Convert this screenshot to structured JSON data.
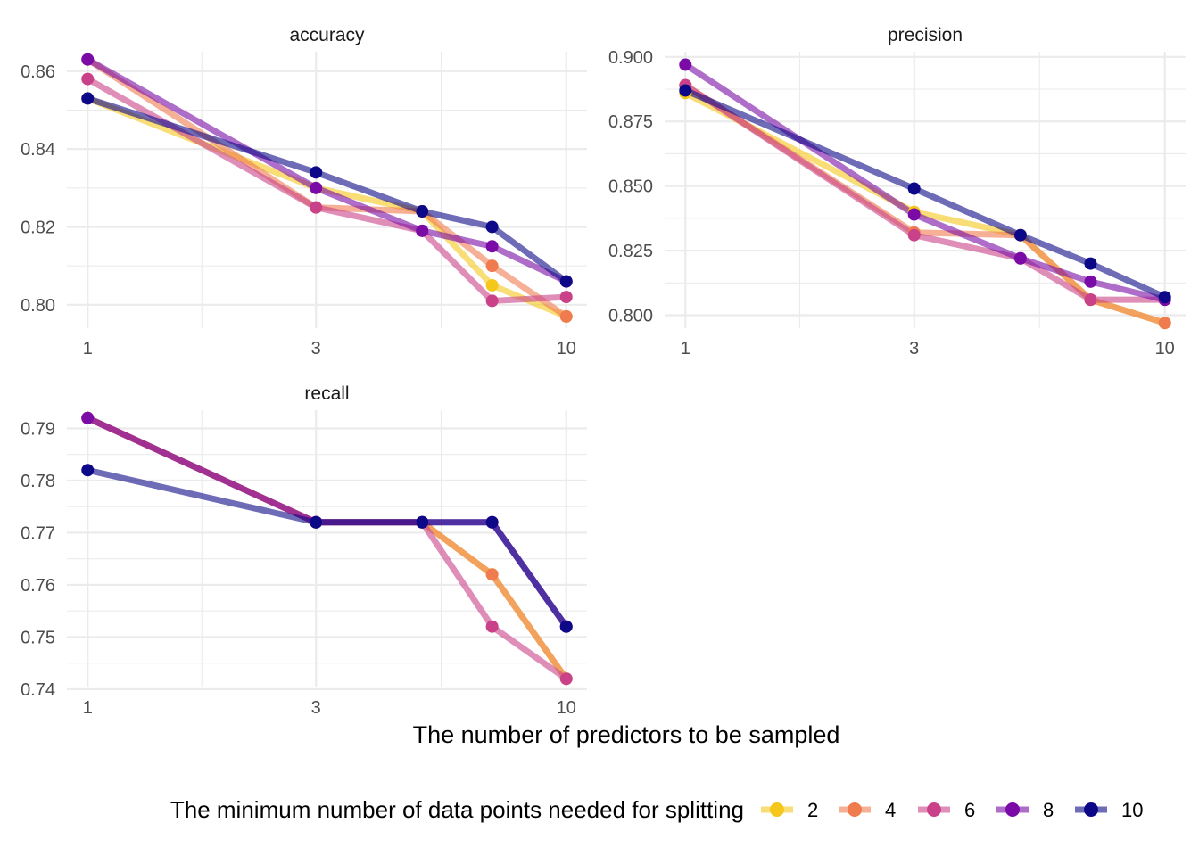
{
  "chart_data": {
    "type": "line",
    "x_scale": "log10",
    "x_ticks": [
      1,
      3,
      10
    ],
    "xlabel": "The number of predictors to be sampled",
    "legend": {
      "title": "The minimum number of data points needed for splitting",
      "position": "bottom",
      "colors": {
        "2": "#f5c71a",
        "4": "#ef7b4f",
        "6": "#c94289",
        "8": "#7a0ba6",
        "10": "#0d0887"
      }
    },
    "grid": true,
    "panels": [
      {
        "title": "accuracy",
        "ylim": [
          0.794,
          0.865
        ],
        "y_ticks": [
          0.8,
          0.82,
          0.84,
          0.86
        ],
        "y_tick_labels": [
          "0.80",
          "0.82",
          "0.84",
          "0.86"
        ],
        "series": [
          {
            "name": "2",
            "x": [
              1,
              3,
              5,
              7,
              10
            ],
            "values": [
              0.853,
              0.83,
              0.824,
              0.805,
              0.797
            ]
          },
          {
            "name": "4",
            "x": [
              1,
              3,
              5,
              7,
              10
            ],
            "values": [
              0.863,
              0.825,
              0.824,
              0.81,
              0.797
            ]
          },
          {
            "name": "6",
            "x": [
              1,
              3,
              5,
              7,
              10
            ],
            "values": [
              0.858,
              0.825,
              0.819,
              0.801,
              0.802
            ]
          },
          {
            "name": "8",
            "x": [
              1,
              3,
              5,
              7,
              10
            ],
            "values": [
              0.863,
              0.83,
              0.819,
              0.815,
              0.806
            ]
          },
          {
            "name": "10",
            "x": [
              1,
              3,
              5,
              7,
              10
            ],
            "values": [
              0.853,
              0.834,
              0.824,
              0.82,
              0.806
            ]
          }
        ]
      },
      {
        "title": "precision",
        "ylim": [
          0.795,
          0.902
        ],
        "y_ticks": [
          0.8,
          0.825,
          0.85,
          0.875,
          0.9
        ],
        "y_tick_labels": [
          "0.800",
          "0.825",
          "0.850",
          "0.875",
          "0.900"
        ],
        "series": [
          {
            "name": "2",
            "x": [
              1,
              3,
              5,
              7,
              10
            ],
            "values": [
              0.886,
              0.84,
              0.831,
              0.806,
              0.797
            ]
          },
          {
            "name": "4",
            "x": [
              1,
              3,
              5,
              7,
              10
            ],
            "values": [
              0.889,
              0.832,
              0.831,
              0.806,
              0.797
            ]
          },
          {
            "name": "6",
            "x": [
              1,
              3,
              5,
              7,
              10
            ],
            "values": [
              0.889,
              0.831,
              0.822,
              0.806,
              0.806
            ]
          },
          {
            "name": "8",
            "x": [
              1,
              3,
              5,
              7,
              10
            ],
            "values": [
              0.897,
              0.839,
              0.822,
              0.813,
              0.806
            ]
          },
          {
            "name": "10",
            "x": [
              1,
              3,
              5,
              7,
              10
            ],
            "values": [
              0.887,
              0.849,
              0.831,
              0.82,
              0.807
            ]
          }
        ]
      },
      {
        "title": "recall",
        "ylim": [
          0.7405,
          0.7935
        ],
        "y_ticks": [
          0.74,
          0.75,
          0.76,
          0.77,
          0.78,
          0.79
        ],
        "y_tick_labels": [
          "0.74",
          "0.75",
          "0.76",
          "0.77",
          "0.78",
          "0.79"
        ],
        "series": [
          {
            "name": "2",
            "x": [
              1,
              3,
              5,
              7,
              10
            ],
            "values": [
              0.792,
              0.772,
              0.772,
              0.762,
              0.742
            ]
          },
          {
            "name": "4",
            "x": [
              1,
              3,
              5,
              7,
              10
            ],
            "values": [
              0.792,
              0.772,
              0.772,
              0.762,
              0.742
            ]
          },
          {
            "name": "6",
            "x": [
              1,
              3,
              5,
              7,
              10
            ],
            "values": [
              0.792,
              0.772,
              0.772,
              0.752,
              0.742
            ]
          },
          {
            "name": "8",
            "x": [
              1,
              3,
              5,
              7,
              10
            ],
            "values": [
              0.792,
              0.772,
              0.772,
              0.772,
              0.752
            ]
          },
          {
            "name": "10",
            "x": [
              1,
              3,
              5,
              7,
              10
            ],
            "values": [
              0.782,
              0.772,
              0.772,
              0.772,
              0.752
            ]
          }
        ]
      }
    ]
  }
}
